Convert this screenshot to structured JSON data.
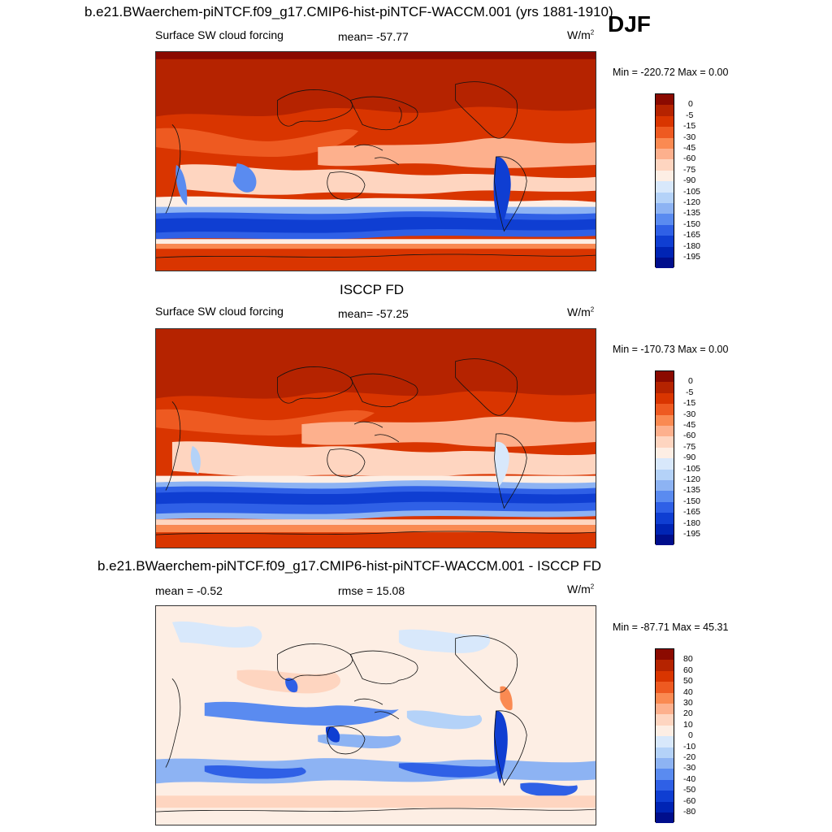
{
  "season": "DJF",
  "warm_scale": [
    "#8b0a00",
    "#b52300",
    "#d93500",
    "#ee5a21",
    "#fa8a52",
    "#fdb08d",
    "#fed5c0",
    "#fdeee4",
    "#d8e8fb",
    "#b4d2f8",
    "#8db3f3",
    "#5a8bf0",
    "#2f60e6",
    "#0f3ed2",
    "#0024b4",
    "#000e8c"
  ],
  "diff_scale": [
    "#8b0a00",
    "#b52300",
    "#d93500",
    "#ee5a21",
    "#fa8a52",
    "#fdb08d",
    "#fed5c0",
    "#fdeee4",
    "#d8e8fb",
    "#b4d2f8",
    "#8db3f3",
    "#5a8bf0",
    "#2f60e6",
    "#0f3ed2",
    "#0024b4",
    "#000e8c"
  ],
  "panels": [
    {
      "title": "b.e21.BWaerchem-piNTCF.f09_g17.CMIP6-hist-piNTCF-WACCM.001 (yrs 1881-1910)",
      "left_label": "Surface SW cloud forcing",
      "center_label": "mean= -57.77",
      "units": "W/m",
      "units_sup": "2",
      "minmax": "Min = -220.72 Max =   0.00",
      "colorbar_labels": [
        "0",
        "-5",
        "-15",
        "-30",
        "-45",
        "-60",
        "-75",
        "-90",
        "-105",
        "-120",
        "-135",
        "-150",
        "-165",
        "-180",
        "-195"
      ]
    },
    {
      "title": "ISCCP FD",
      "left_label": "Surface SW cloud forcing",
      "center_label": "mean= -57.25",
      "units": "W/m",
      "units_sup": "2",
      "minmax": "Min = -170.73 Max =   0.00",
      "colorbar_labels": [
        "0",
        "-5",
        "-15",
        "-30",
        "-45",
        "-60",
        "-75",
        "-90",
        "-105",
        "-120",
        "-135",
        "-150",
        "-165",
        "-180",
        "-195"
      ]
    },
    {
      "title": "b.e21.BWaerchem-piNTCF.f09_g17.CMIP6-hist-piNTCF-WACCM.001 - ISCCP FD",
      "left_label": "mean =  -0.52",
      "center_label": "rmse =  15.08",
      "units": "W/m",
      "units_sup": "2",
      "minmax": "Min = -87.71 Max =  45.31",
      "colorbar_labels": [
        "80",
        "60",
        "50",
        "40",
        "30",
        "20",
        "10",
        "0",
        "-10",
        "-20",
        "-30",
        "-40",
        "-50",
        "-60",
        "-80"
      ]
    }
  ]
}
